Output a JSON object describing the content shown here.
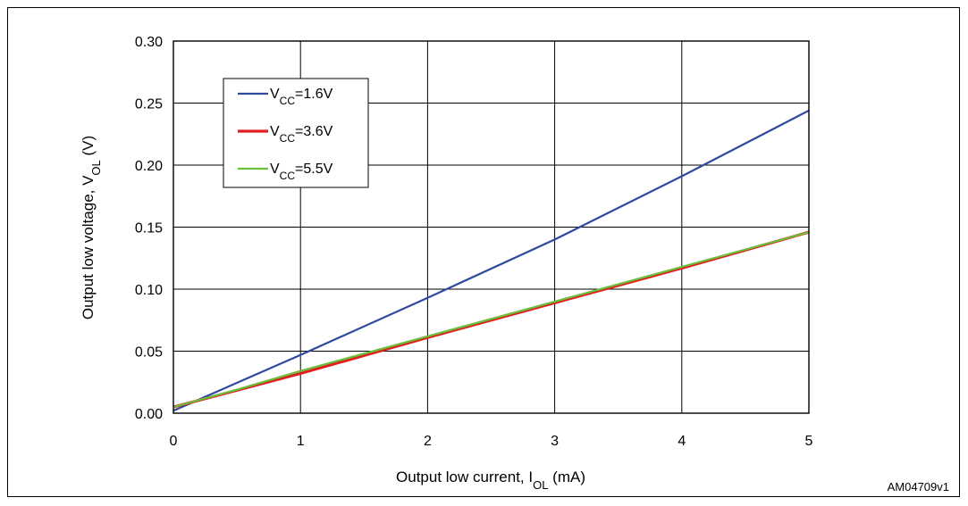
{
  "chart_data": {
    "type": "line",
    "xlabel": {
      "main": "Output low current, I",
      "sub": "OL",
      "suffix": " (mA)"
    },
    "ylabel": {
      "main": "Output low voltage, V",
      "sub": "OL",
      "suffix": "  (V)"
    },
    "xlim": [
      0,
      5
    ],
    "ylim": [
      0,
      0.3
    ],
    "x_ticks": [
      "0",
      "1",
      "2",
      "3",
      "4",
      "5"
    ],
    "y_ticks": [
      "0.00",
      "0.05",
      "0.10",
      "0.15",
      "0.20",
      "0.25",
      "0.30"
    ],
    "grid": true,
    "legend_position": "top-left",
    "series": [
      {
        "name": "VCC=1.6V",
        "label_main": "V",
        "label_sub": "CC",
        "label_suffix": "=1.6V",
        "color": "#2e4a9e",
        "x": [
          0,
          1,
          2,
          3,
          4,
          5
        ],
        "y": [
          0.002,
          0.047,
          0.093,
          0.14,
          0.191,
          0.244
        ]
      },
      {
        "name": "VCC=3.6V",
        "label_main": "V",
        "label_sub": "CC",
        "label_suffix": "=3.6V",
        "color": "#e02020",
        "x": [
          0,
          1,
          2,
          3,
          4,
          5
        ],
        "y": [
          0.005,
          0.032,
          0.061,
          0.089,
          0.117,
          0.146
        ]
      },
      {
        "name": "VCC=5.5V",
        "label_main": "V",
        "label_sub": "CC",
        "label_suffix": "=5.5V",
        "color": "#6cbf3c",
        "x": [
          0,
          0.5,
          1,
          2,
          3,
          4,
          5
        ],
        "y": [
          0.005,
          0.019,
          0.034,
          0.062,
          0.09,
          0.118,
          0.146
        ]
      }
    ]
  },
  "figure_id": "AM04709v1"
}
